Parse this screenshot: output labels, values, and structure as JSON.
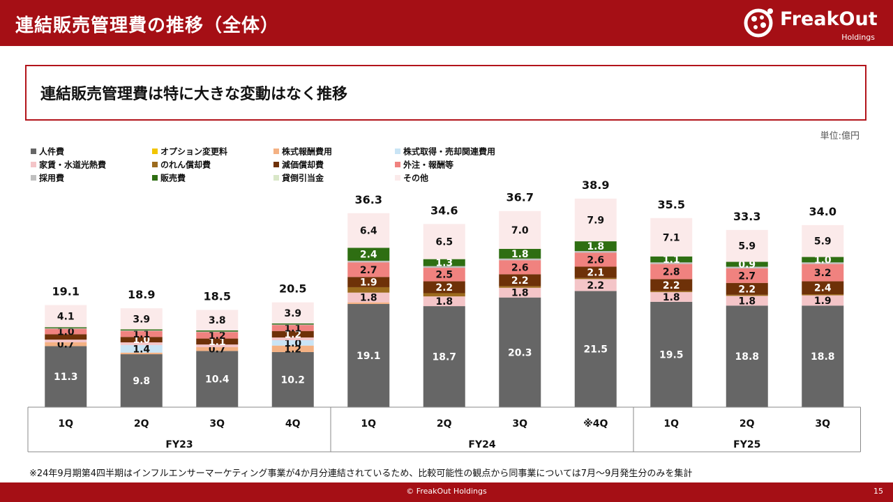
{
  "header": {
    "title": "連結販売管理費の推移（全体）"
  },
  "logo": {
    "name": "FreakOut",
    "sub": "Holdings"
  },
  "message": "連結販売管理費は特に大きな変動はなく推移",
  "unit_label": "単位:億円",
  "footnote": "※24年9月期第4四半期はインフルエンサーマーケティング事業が4か月分連結されているため、比較可能性の観点から同事業については7月～9月発生分のみを集計",
  "footer": {
    "copyright": "© FreakOut Holdings",
    "page": "15"
  },
  "chart_data": {
    "type": "bar",
    "stacked": true,
    "categories": [
      "1Q",
      "2Q",
      "3Q",
      "4Q",
      "1Q",
      "2Q",
      "3Q",
      "※4Q",
      "1Q",
      "2Q",
      "3Q"
    ],
    "groups": [
      {
        "label": "FY23",
        "count": 4
      },
      {
        "label": "FY24",
        "count": 4
      },
      {
        "label": "FY25",
        "count": 3
      }
    ],
    "totals": [
      19.1,
      18.9,
      18.5,
      20.5,
      36.3,
      34.6,
      36.7,
      38.9,
      35.5,
      33.3,
      34.0
    ],
    "legend_position": "top-left",
    "series": [
      {
        "name": "人件費",
        "color": "#666666",
        "label_color": "#ffffff",
        "values": [
          11.3,
          9.8,
          10.4,
          10.2,
          19.1,
          18.7,
          20.3,
          21.5,
          19.5,
          18.8,
          18.8
        ],
        "labels": [
          "11.3",
          "9.8",
          "10.4",
          "10.2",
          "19.1",
          "18.7",
          "20.3",
          "21.5",
          "19.5",
          "18.8",
          "18.8"
        ]
      },
      {
        "name": "オプション変更料",
        "color": "#f2c500",
        "label_color": "#111111",
        "values": [
          0,
          0,
          0,
          0,
          0,
          0,
          0,
          0,
          0,
          0,
          0
        ],
        "labels": [
          "",
          "",
          "",
          "",
          "",
          "",
          "",
          "",
          "",
          "",
          ""
        ]
      },
      {
        "name": "株式報酬費用",
        "color": "#f4b183",
        "label_color": "#111111",
        "values": [
          0.7,
          0.3,
          0.7,
          1.2,
          0.3,
          0,
          0,
          0,
          0,
          0,
          0
        ],
        "labels": [
          "0.7",
          "",
          "0.7",
          "1.2",
          "",
          "",
          "",
          "",
          "",
          "",
          ""
        ]
      },
      {
        "name": "株式取得・売却関連費用",
        "color": "#c9e4f5",
        "label_color": "#111111",
        "values": [
          0,
          1.4,
          0,
          1.0,
          0,
          0,
          0,
          0,
          0,
          0,
          0
        ],
        "labels": [
          "",
          "1.4",
          "",
          "1.0",
          "",
          "",
          "",
          "",
          "",
          "",
          ""
        ]
      },
      {
        "name": "家賃・水道光熱費",
        "color": "#f4c5c8",
        "label_color": "#111111",
        "values": [
          0.5,
          0.5,
          0.5,
          0.5,
          1.8,
          1.8,
          1.8,
          2.2,
          1.8,
          1.8,
          1.9
        ],
        "labels": [
          "",
          "",
          "",
          "",
          "1.8",
          "1.8",
          "1.8",
          "2.2",
          "1.8",
          "1.8",
          "1.9"
        ]
      },
      {
        "name": "のれん償却費",
        "color": "#9c6b1e",
        "label_color": "#ffffff",
        "values": [
          0,
          0,
          0,
          0,
          1.0,
          0.6,
          0.3,
          0.2,
          0.2,
          0.2,
          0.2
        ],
        "labels": [
          "",
          "",
          "",
          "",
          "",
          "",
          "",
          "",
          "",
          "",
          ""
        ]
      },
      {
        "name": "減価償却費",
        "color": "#6e3108",
        "label_color": "#ffffff",
        "values": [
          1.0,
          1.0,
          1.1,
          1.2,
          1.9,
          2.2,
          2.2,
          2.1,
          2.2,
          2.2,
          2.4
        ],
        "labels": [
          "",
          "1.0",
          "1.1",
          "1.2",
          "1.9",
          "2.2",
          "2.2",
          "2.1",
          "2.2",
          "2.2",
          "2.4"
        ]
      },
      {
        "name": "外注・報酬等",
        "color": "#f0827f",
        "label_color": "#111111",
        "values": [
          1.0,
          1.1,
          1.2,
          1.1,
          2.7,
          2.5,
          2.6,
          2.6,
          2.8,
          2.7,
          3.2
        ],
        "labels": [
          "1.0",
          "1.1",
          "1.2",
          "1.1",
          "2.7",
          "2.5",
          "2.6",
          "2.6",
          "2.8",
          "2.7",
          "3.2"
        ]
      },
      {
        "name": "採用費",
        "color": "#bfbfbf",
        "label_color": "#111111",
        "values": [
          0.1,
          0.1,
          0.1,
          0.1,
          0.3,
          0.3,
          0.3,
          0.3,
          0.3,
          0.3,
          0.3
        ],
        "labels": [
          "",
          "",
          "",
          "",
          "",
          "",
          "",
          "",
          "",
          "",
          ""
        ]
      },
      {
        "name": "販売費",
        "color": "#2e6e12",
        "label_color": "#ffffff",
        "values": [
          0.2,
          0.2,
          0.2,
          0.2,
          2.4,
          1.3,
          1.8,
          1.8,
          1.1,
          0.9,
          1.0
        ],
        "labels": [
          "",
          "",
          "",
          "",
          "2.4",
          "1.3",
          "1.8",
          "1.8",
          "1.1",
          "0.9",
          "1.0"
        ]
      },
      {
        "name": "貸倒引当金",
        "color": "#d9e7c8",
        "label_color": "#111111",
        "values": [
          0,
          0,
          0,
          0,
          0,
          0,
          0,
          0,
          0,
          0,
          0
        ],
        "labels": [
          "",
          "",
          "",
          "",
          "",
          "",
          "",
          "",
          "",
          "",
          ""
        ]
      },
      {
        "name": "その他",
        "color": "#fbeaea",
        "label_color": "#111111",
        "values": [
          4.1,
          3.9,
          3.8,
          3.9,
          6.4,
          6.5,
          7.0,
          7.9,
          7.1,
          5.9,
          5.9
        ],
        "labels": [
          "4.1",
          "3.9",
          "3.8",
          "3.9",
          "6.4",
          "6.5",
          "7.0",
          "7.9",
          "7.1",
          "5.9",
          "5.9"
        ]
      }
    ]
  }
}
